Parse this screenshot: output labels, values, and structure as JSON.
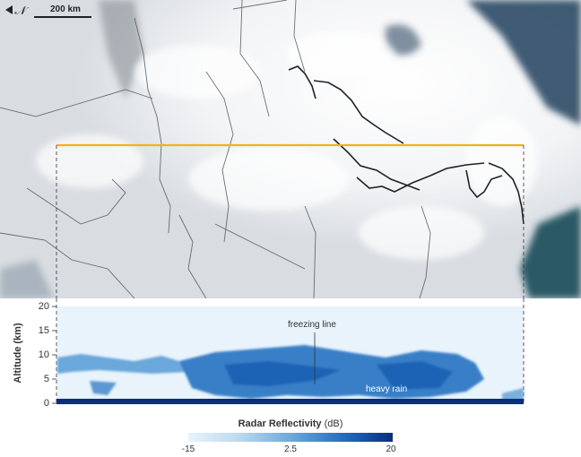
{
  "map": {
    "compass_glyph": "𝒩",
    "scale_label": "200 km"
  },
  "profile": {
    "y_axis_title": "Altitude (km)",
    "y_ticks": [
      "20",
      "15",
      "10",
      "5",
      "0"
    ],
    "annotations": {
      "freezing_line": "freezing line",
      "heavy_rain": "heavy rain"
    }
  },
  "legend": {
    "title": "Radar Reflectivity",
    "unit": "(dB)",
    "ticks": [
      "-15",
      "2.5",
      "20"
    ]
  },
  "colors": {
    "track": "#f2b21a",
    "ocean": "#1f3f5c",
    "radar_dark": "#0b2f7a",
    "radar_light": "#e8f3fb"
  }
}
